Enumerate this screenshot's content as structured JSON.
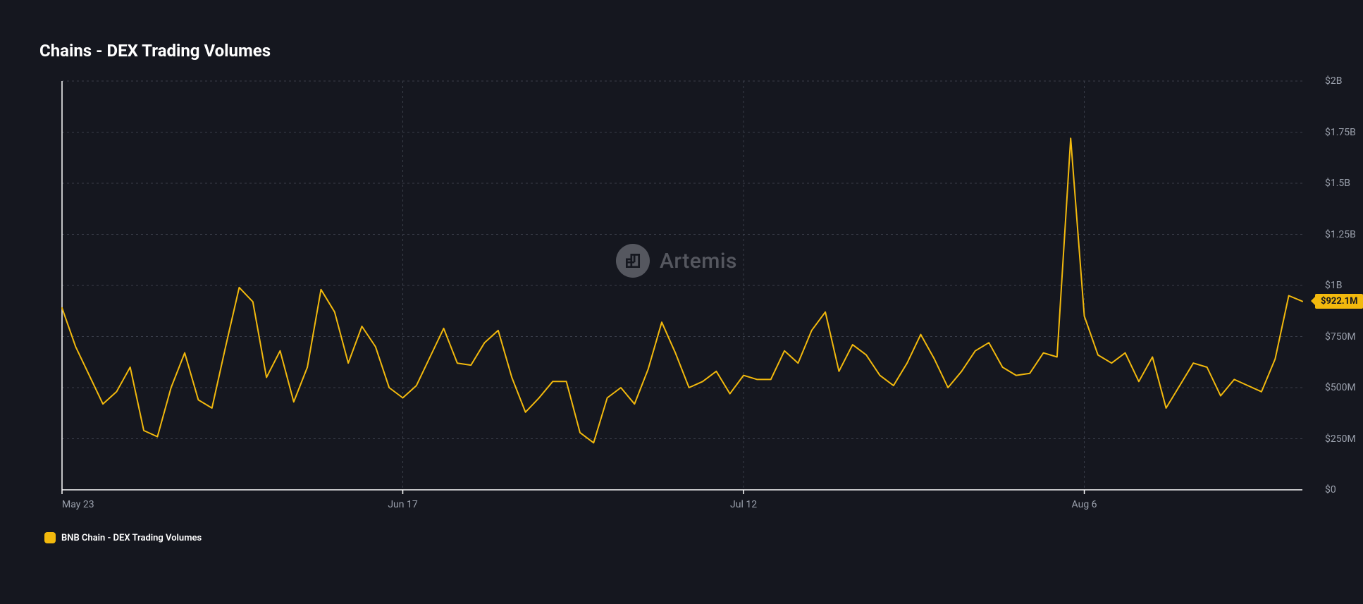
{
  "title": "Chains - DEX Trading Volumes",
  "watermark": {
    "text": "Artemis"
  },
  "legend": {
    "swatch_color": "#f2b90d",
    "label": "BNB Chain - DEX Trading Volumes"
  },
  "chart": {
    "type": "line",
    "background_color": "#15171f",
    "grid_color": "#3a3e4a",
    "axis_color": "#ffffff",
    "line_color": "#f2b90d",
    "line_width": 2,
    "ylim": [
      0,
      2000
    ],
    "y_tick_step": 250,
    "y_tick_labels": [
      "$0",
      "$250M",
      "$500M",
      "$750M",
      "$1B",
      "$1.25B",
      "$1.5B",
      "$1.75B",
      "$2B"
    ],
    "x_ticks": [
      {
        "label": "May 23",
        "index": 0
      },
      {
        "label": "Jun 17",
        "index": 25
      },
      {
        "label": "Jul 12",
        "index": 50
      },
      {
        "label": "Aug 6",
        "index": 75
      }
    ],
    "current_value_badge": {
      "text": "$922.1M",
      "value": 922.1,
      "bg_color": "#f2b90d",
      "text_color": "#15171f"
    },
    "series": [
      {
        "name": "BNB Chain",
        "color": "#f2b90d",
        "values": [
          890,
          700,
          560,
          420,
          480,
          600,
          290,
          260,
          500,
          670,
          440,
          400,
          700,
          990,
          920,
          550,
          680,
          430,
          600,
          980,
          870,
          620,
          800,
          700,
          500,
          450,
          510,
          650,
          790,
          620,
          610,
          720,
          780,
          550,
          380,
          450,
          530,
          530,
          280,
          230,
          450,
          500,
          420,
          590,
          820,
          670,
          500,
          530,
          580,
          470,
          560,
          540,
          540,
          680,
          620,
          780,
          870,
          580,
          710,
          660,
          560,
          510,
          620,
          760,
          640,
          500,
          580,
          680,
          720,
          600,
          560,
          570,
          670,
          650,
          1720,
          850,
          660,
          620,
          670,
          530,
          650,
          400,
          510,
          620,
          600,
          460,
          540,
          510,
          480,
          640,
          950,
          922.1
        ]
      }
    ]
  }
}
